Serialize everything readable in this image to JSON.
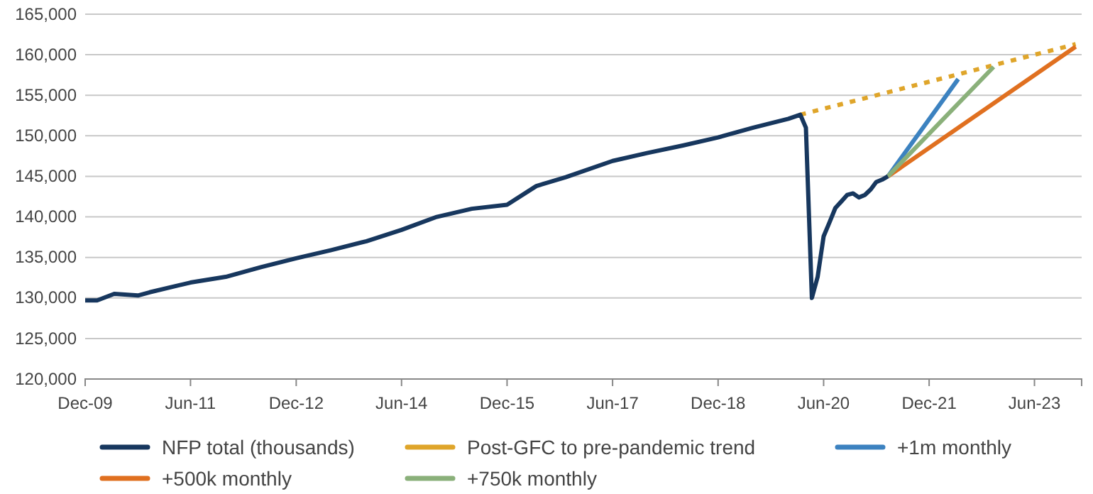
{
  "chart_data": {
    "type": "line",
    "x": [
      "2009-12",
      "2010-02",
      "2010-05",
      "2010-09",
      "2010-11",
      "2011-06",
      "2011-12",
      "2012-06",
      "2012-12",
      "2013-06",
      "2013-12",
      "2014-06",
      "2014-12",
      "2015-06",
      "2015-12",
      "2016-05",
      "2016-10",
      "2017-06",
      "2017-12",
      "2018-06",
      "2018-12",
      "2019-06",
      "2019-12",
      "2020-02",
      "2020-03",
      "2020-04",
      "2020-05",
      "2020-06",
      "2020-07",
      "2020-08",
      "2020-09",
      "2020-10",
      "2020-11",
      "2020-12",
      "2021-01",
      "2021-02",
      "2021-03",
      "2021-04",
      "2021-05"
    ],
    "series": [
      {
        "name": "NFP total (thousands)",
        "color": "#17375e",
        "values": [
          129700,
          129700,
          130500,
          130300,
          130700,
          131900,
          132600,
          133800,
          134900,
          135900,
          137000,
          138400,
          140000,
          141000,
          141500,
          143800,
          144900,
          146900,
          147900,
          148800,
          149800,
          151000,
          152100,
          152600,
          151000,
          130000,
          132600,
          137600,
          139300,
          141100,
          141900,
          142700,
          142900,
          142400,
          142700,
          143400,
          144300,
          144600,
          145000
        ]
      },
      {
        "name": "Post-GFC to pre-pandemic trend",
        "color": "#dfa52a",
        "line_style": "dotted",
        "x": [
          "2020-02",
          "2024-01"
        ],
        "values": [
          152600,
          161300
        ]
      },
      {
        "name": "+1m monthly",
        "color": "#3c82c0",
        "x": [
          "2021-05",
          "2022-05"
        ],
        "values": [
          145000,
          157000
        ]
      },
      {
        "name": "+500k monthly",
        "color": "#e07020",
        "x": [
          "2021-05",
          "2024-01"
        ],
        "values": [
          145000,
          161000
        ]
      },
      {
        "name": "+750k monthly",
        "color": "#8ab07a",
        "x": [
          "2021-05",
          "2022-11"
        ],
        "values": [
          145000,
          158500
        ]
      }
    ],
    "xlim": [
      "2009-12",
      "2024-02"
    ],
    "xticks": [
      {
        "value": "2009-12",
        "label": "Dec-09"
      },
      {
        "value": "2011-06",
        "label": "Jun-11"
      },
      {
        "value": "2012-12",
        "label": "Dec-12"
      },
      {
        "value": "2014-06",
        "label": "Jun-14"
      },
      {
        "value": "2015-12",
        "label": "Dec-15"
      },
      {
        "value": "2017-06",
        "label": "Jun-17"
      },
      {
        "value": "2018-12",
        "label": "Dec-18"
      },
      {
        "value": "2020-06",
        "label": "Jun-20"
      },
      {
        "value": "2021-12",
        "label": "Dec-21"
      },
      {
        "value": "2023-06",
        "label": "Jun-23"
      }
    ],
    "ylim": [
      120000,
      165000
    ],
    "yticks": [
      {
        "value": 120000,
        "label": "120,000"
      },
      {
        "value": 125000,
        "label": "125,000"
      },
      {
        "value": 130000,
        "label": "130,000"
      },
      {
        "value": 135000,
        "label": "135,000"
      },
      {
        "value": 140000,
        "label": "140,000"
      },
      {
        "value": 145000,
        "label": "145,000"
      },
      {
        "value": 150000,
        "label": "150,000"
      },
      {
        "value": 155000,
        "label": "155,000"
      },
      {
        "value": 160000,
        "label": "160,000"
      },
      {
        "value": 165000,
        "label": "165,000"
      }
    ],
    "grid": "y",
    "legend": "bottom",
    "marker": "none"
  }
}
